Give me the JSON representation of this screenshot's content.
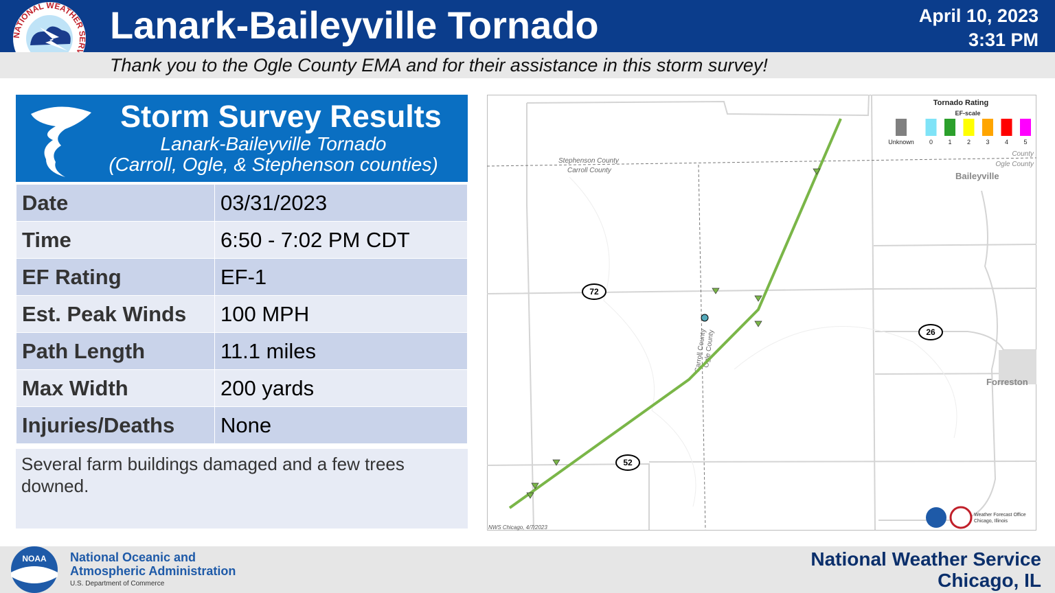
{
  "header": {
    "title": "Lanark-Baileyville Tornado",
    "date": "April 10, 2023",
    "time": "3:31 PM",
    "subtitle": "Thank you to the Ogle County EMA and for their assistance in this storm survey!",
    "logo_text": "NATIONAL WEATHER SERVICE"
  },
  "panel": {
    "title": "Storm Survey Results",
    "subtitle1": "Lanark-Baileyville Tornado",
    "subtitle2": "(Carroll, Ogle, & Stephenson counties)"
  },
  "table": {
    "rows": [
      [
        "Date",
        "03/31/2023"
      ],
      [
        "Time",
        "6:50 - 7:02 PM CDT"
      ],
      [
        "EF Rating",
        "EF-1"
      ],
      [
        "Est. Peak Winds",
        "100 MPH"
      ],
      [
        "Path Length",
        "11.1 miles"
      ],
      [
        "Max Width",
        "200 yards"
      ],
      [
        "Injuries/Deaths",
        "None"
      ]
    ],
    "note": "Several farm buildings damaged and a few trees downed."
  },
  "map": {
    "legend_title": "Tornado Rating",
    "legend_subtitle": "EF-scale",
    "legend": [
      {
        "label": "Unknown",
        "color": "#808080"
      },
      {
        "label": "0",
        "color": "#7fe3f7"
      },
      {
        "label": "1",
        "color": "#2ca02c"
      },
      {
        "label": "2",
        "color": "#ffff00"
      },
      {
        "label": "3",
        "color": "#ffa500"
      },
      {
        "label": "4",
        "color": "#ff0000"
      },
      {
        "label": "5",
        "color": "#ff00ff"
      }
    ],
    "county_labels": [
      "Stephenson County",
      "Carroll County",
      "County",
      "Ogle County",
      "Carroll County",
      "Ogle County"
    ],
    "towns": [
      "Baileyville",
      "Forreston"
    ],
    "routes": [
      "72",
      "26",
      "52"
    ],
    "credit": "NWS Chicago, 4/7/2023",
    "office": [
      "Weather Forecast Office",
      "Chicago, Illinois"
    ],
    "path_color": "#7ab648"
  },
  "footer": {
    "noaa_logo": "NOAA",
    "noaa": [
      "National Oceanic and",
      "Atmospheric Administration"
    ],
    "dept": "U.S. Department of Commerce",
    "nws": [
      "National Weather Service",
      "Chicago, IL"
    ]
  }
}
